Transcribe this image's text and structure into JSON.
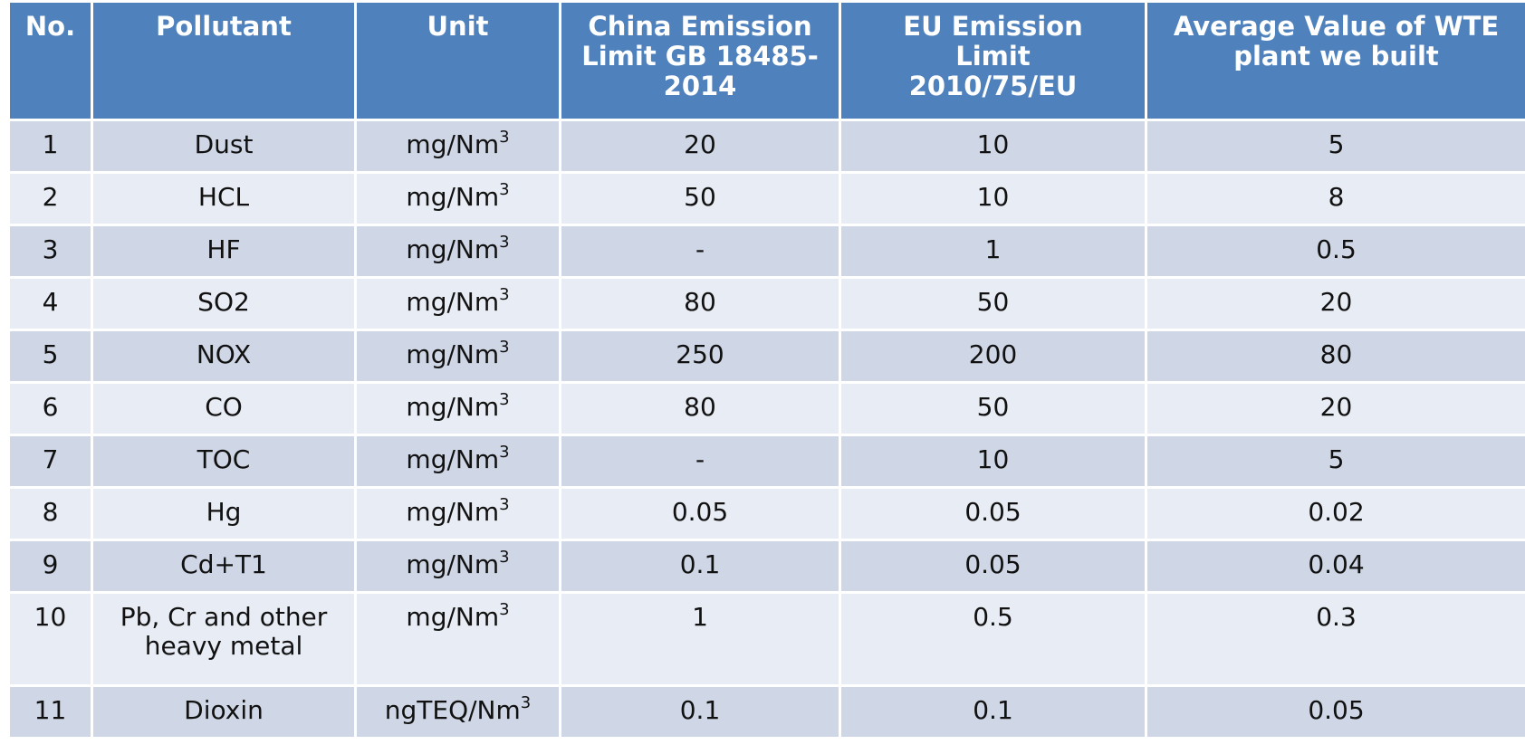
{
  "columns": [
    "No.",
    "Pollutant",
    "Unit",
    "China Emission Limit GB 18485-2014",
    "EU Emission Limit 2010/75/EU",
    "Average Value of WTE plant we built"
  ],
  "rows": [
    {
      "no": "1",
      "pollutant": "Dust",
      "unit_base": "mg/Nm",
      "unit_exp": "3",
      "china": "20",
      "eu": "10",
      "avg": "5"
    },
    {
      "no": "2",
      "pollutant": "HCL",
      "unit_base": "mg/Nm",
      "unit_exp": "3",
      "china": "50",
      "eu": "10",
      "avg": "8"
    },
    {
      "no": "3",
      "pollutant": "HF",
      "unit_base": "mg/Nm",
      "unit_exp": "3",
      "china": "-",
      "eu": "1",
      "avg": "0.5"
    },
    {
      "no": "4",
      "pollutant": "SO2",
      "unit_base": "mg/Nm",
      "unit_exp": "3",
      "china": "80",
      "eu": "50",
      "avg": "20"
    },
    {
      "no": "5",
      "pollutant": "NOX",
      "unit_base": "mg/Nm",
      "unit_exp": "3",
      "china": "250",
      "eu": "200",
      "avg": "80"
    },
    {
      "no": "6",
      "pollutant": "CO",
      "unit_base": "mg/Nm",
      "unit_exp": "3",
      "china": "80",
      "eu": "50",
      "avg": "20"
    },
    {
      "no": "7",
      "pollutant": "TOC",
      "unit_base": "mg/Nm",
      "unit_exp": "3",
      "china": "-",
      "eu": "10",
      "avg": "5"
    },
    {
      "no": "8",
      "pollutant": "Hg",
      "unit_base": "mg/Nm",
      "unit_exp": "3",
      "china": "0.05",
      "eu": "0.05",
      "avg": "0.02"
    },
    {
      "no": "9",
      "pollutant": "Cd+T1",
      "unit_base": "mg/Nm",
      "unit_exp": "3",
      "china": "0.1",
      "eu": "0.05",
      "avg": "0.04"
    },
    {
      "no": "10",
      "pollutant": "Pb, Cr and other heavy metal",
      "unit_base": "mg/Nm",
      "unit_exp": "3",
      "china": "1",
      "eu": "0.5",
      "avg": "0.3"
    },
    {
      "no": "11",
      "pollutant": "Dioxin",
      "unit_base": "ngTEQ/Nm",
      "unit_exp": "3",
      "china": "0.1",
      "eu": "0.1",
      "avg": "0.05"
    }
  ],
  "colors": {
    "header": "#4f81bd",
    "row_dark": "#cfd7e6",
    "row_light": "#e8ecf4"
  }
}
